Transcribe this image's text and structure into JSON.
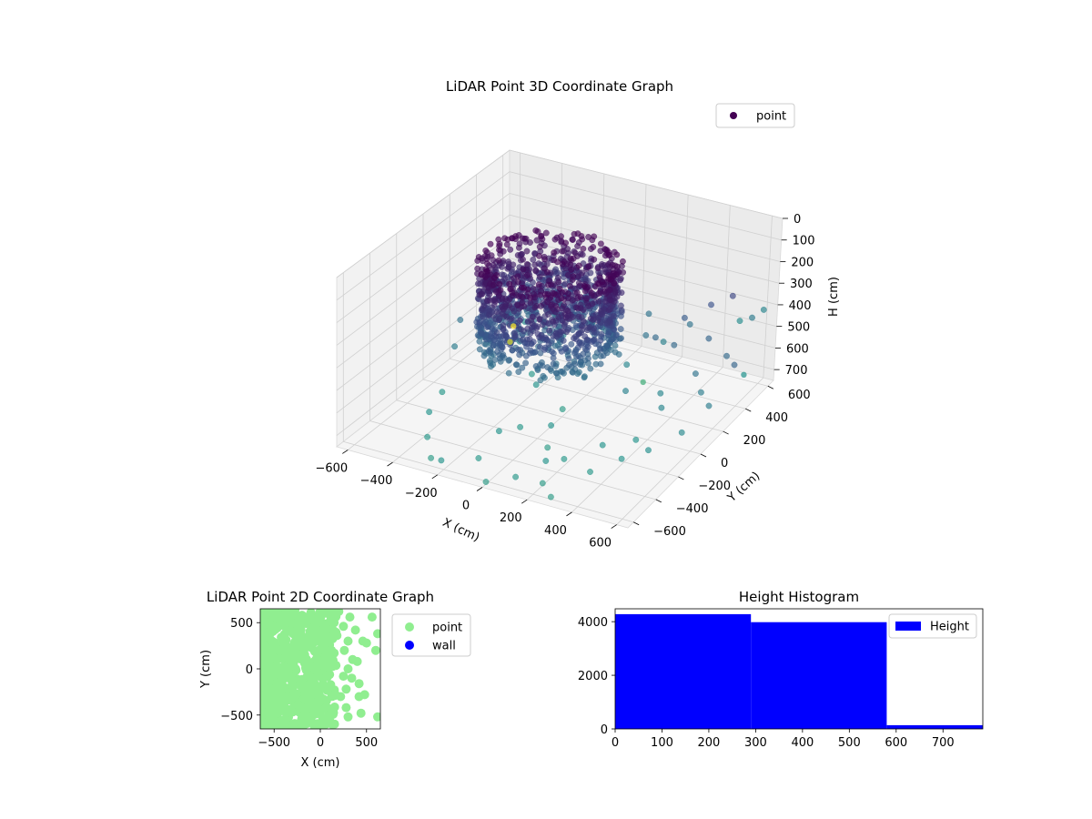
{
  "colors": {
    "viridis_dark": "#440154",
    "viridis_mid": "#3b528b",
    "viridis_teal": "#21918c",
    "viridis_light": "#5ec962",
    "viridis_yellow": "#fde725",
    "point_2d": "#90ee90",
    "wall": "#0000ff",
    "hist_bar": "#0000ff"
  },
  "chart_data": [
    {
      "type": "scatter",
      "projection": "3d",
      "title": "LiDAR Point 3D Coordinate Graph",
      "xlabel": "X (cm)",
      "ylabel": "Y (cm)",
      "zlabel": "H (cm)",
      "xlim": [
        -650,
        650
      ],
      "ylim": [
        -650,
        650
      ],
      "zlim": [
        0,
        750
      ],
      "z_inverted": true,
      "xticks": [
        -600,
        -400,
        -200,
        0,
        200,
        400,
        600
      ],
      "yticks": [
        -600,
        -400,
        -200,
        0,
        200,
        400,
        600
      ],
      "zticks": [
        0,
        100,
        200,
        300,
        400,
        500,
        600,
        700
      ],
      "grid": true,
      "legend": {
        "position": "upper-right",
        "entries": [
          "point"
        ]
      },
      "series": [
        {
          "name": "point",
          "colormap": "viridis",
          "color_by": "height",
          "cluster": {
            "center": [
              -150,
              150
            ],
            "rx": 300,
            "ry": 280,
            "h_range": [
              150,
              550
            ],
            "density": "high"
          },
          "points": [
            [
              -640,
              620,
              700
            ],
            [
              -560,
              560,
              600
            ],
            [
              -480,
              500,
              680
            ],
            [
              -420,
              420,
              460
            ],
            [
              -380,
              300,
              650
            ],
            [
              -300,
              480,
              540
            ],
            [
              -260,
              200,
              720
            ],
            [
              -220,
              380,
              620
            ],
            [
              -180,
              100,
              700
            ],
            [
              -120,
              -300,
              700
            ],
            [
              -80,
              -200,
              720
            ],
            [
              -20,
              40,
              740
            ],
            [
              40,
              -160,
              700
            ],
            [
              80,
              -260,
              740
            ],
            [
              120,
              320,
              640
            ],
            [
              160,
              -420,
              700
            ],
            [
              200,
              -520,
              740
            ],
            [
              240,
              100,
              620
            ],
            [
              280,
              -600,
              740
            ],
            [
              320,
              360,
              520
            ],
            [
              360,
              180,
              640
            ],
            [
              400,
              -100,
              700
            ],
            [
              440,
              440,
              500
            ],
            [
              480,
              260,
              560
            ],
            [
              520,
              560,
              460
            ],
            [
              560,
              380,
              520
            ],
            [
              600,
              620,
              420
            ],
            [
              620,
              480,
              380
            ],
            [
              640,
              300,
              500
            ],
            [
              -500,
              -100,
              720
            ],
            [
              -440,
              -300,
              700
            ],
            [
              -360,
              -450,
              720
            ],
            [
              -280,
              -560,
              740
            ],
            [
              -200,
              -620,
              700
            ],
            [
              -100,
              -500,
              720
            ],
            [
              0,
              -620,
              740
            ],
            [
              100,
              -560,
              720
            ],
            [
              180,
              520,
              620
            ],
            [
              260,
              600,
              560
            ],
            [
              340,
              -380,
              720
            ],
            [
              420,
              -260,
              700
            ],
            [
              500,
              -180,
              680
            ],
            [
              580,
              -40,
              650
            ],
            [
              620,
              120,
              600
            ],
            [
              -600,
              200,
              560
            ],
            [
              -540,
              60,
              600
            ],
            [
              -460,
              340,
              560
            ],
            [
              -340,
              560,
              600
            ],
            [
              -240,
              620,
              620
            ],
            [
              -60,
              520,
              580
            ],
            [
              60,
              600,
              560
            ],
            [
              140,
              440,
              560
            ],
            [
              220,
              380,
              520
            ],
            [
              300,
              480,
              460
            ],
            [
              380,
              560,
              420
            ],
            [
              460,
              600,
              380
            ],
            [
              540,
              200,
              600
            ],
            [
              420,
              80,
              640
            ],
            [
              300,
              -200,
              700
            ],
            [
              200,
              -340,
              720
            ]
          ]
        }
      ]
    },
    {
      "type": "scatter",
      "title": "LiDAR Point 2D Coordinate Graph",
      "xlabel": "X (cm)",
      "ylabel": "Y (cm)",
      "xlim": [
        -650,
        650
      ],
      "ylim": [
        -650,
        650
      ],
      "xticks": [
        -500,
        0,
        500
      ],
      "yticks": [
        -500,
        0,
        500
      ],
      "xticklabels": [
        "−500",
        "0",
        "500"
      ],
      "yticklabels": [
        "−500",
        "0",
        "500"
      ],
      "legend": {
        "position": "outside-right",
        "entries": [
          "point",
          "wall"
        ]
      },
      "series": [
        {
          "name": "point",
          "color": "#90ee90",
          "cluster": {
            "x_range": [
              -650,
              150
            ],
            "y_range": [
              -650,
              650
            ],
            "density": "high"
          },
          "points": [
            [
              -620,
              -580
            ],
            [
              -560,
              -500
            ],
            [
              -600,
              -300
            ],
            [
              -520,
              -420
            ],
            [
              -580,
              620
            ],
            [
              -480,
              560
            ],
            [
              -100,
              -560
            ],
            [
              -300,
              -640
            ],
            [
              -200,
              -600
            ],
            [
              -420,
              -560
            ],
            [
              100,
              -500
            ],
            [
              60,
              -600
            ],
            [
              280,
              -420
            ],
            [
              300,
              -520
            ],
            [
              420,
              -300
            ],
            [
              480,
              -280
            ],
            [
              440,
              -480
            ],
            [
              620,
              -520
            ],
            [
              250,
              460
            ],
            [
              320,
              560
            ],
            [
              380,
              420
            ],
            [
              460,
              300
            ],
            [
              500,
              280
            ],
            [
              600,
              200
            ],
            [
              620,
              380
            ],
            [
              560,
              560
            ],
            [
              300,
              300
            ],
            [
              260,
              200
            ],
            [
              350,
              100
            ],
            [
              400,
              80
            ],
            [
              340,
              -100
            ],
            [
              280,
              -220
            ],
            [
              220,
              -300
            ],
            [
              420,
              -160
            ],
            [
              200,
              620
            ],
            [
              150,
              500
            ],
            [
              180,
              360
            ],
            [
              120,
              200
            ],
            [
              300,
              0
            ],
            [
              250,
              -80
            ]
          ]
        },
        {
          "name": "wall",
          "color": "#0000ff",
          "points": []
        }
      ]
    },
    {
      "type": "bar",
      "subtype": "histogram",
      "title": "Height Histogram",
      "xlabel": "",
      "ylabel": "",
      "xlim": [
        0,
        785
      ],
      "ylim": [
        0,
        4480
      ],
      "xticks": [
        0,
        100,
        200,
        300,
        400,
        500,
        600,
        700
      ],
      "yticks": [
        0,
        2000,
        4000
      ],
      "legend": {
        "position": "upper-right",
        "entries": [
          "Height"
        ]
      },
      "series": [
        {
          "name": "Height",
          "color": "#0000ff",
          "bins": [
            {
              "x0": 0,
              "x1": 290,
              "count": 4280
            },
            {
              "x0": 290,
              "x1": 580,
              "count": 3980
            },
            {
              "x0": 580,
              "x1": 785,
              "count": 140
            }
          ]
        }
      ]
    }
  ]
}
